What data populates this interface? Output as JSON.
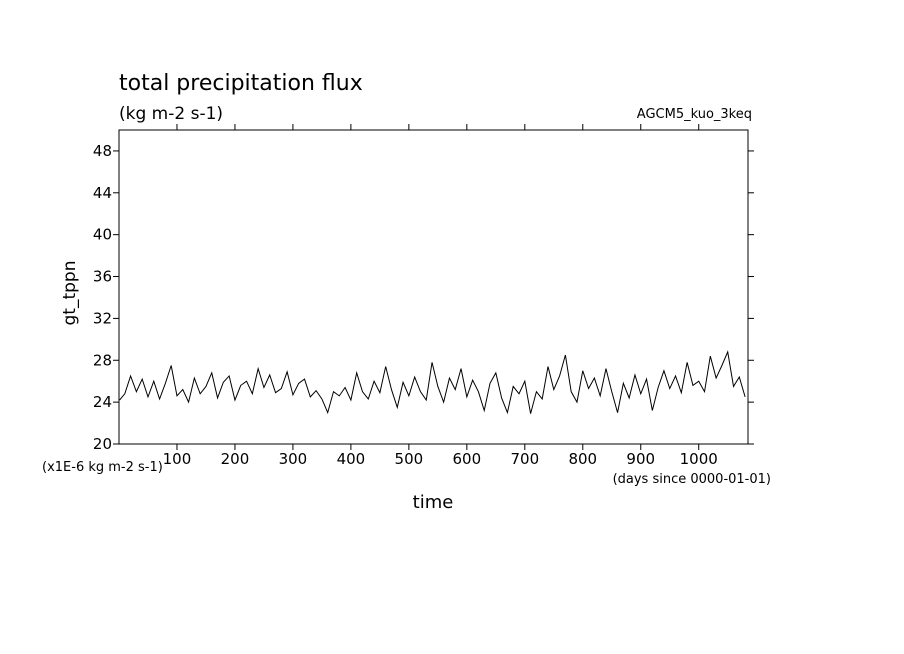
{
  "chart_data": {
    "type": "line",
    "title": "total precipitation flux",
    "subtitle": "(kg m-2 s-1)",
    "annotation": "AGCM5_kuo_3keq",
    "y_label": "gt_tppn",
    "x_label": "time",
    "y_units": "(x1E-6 kg m-2 s-1)",
    "x_units": "(days since 0000-01-01)",
    "x": [
      1,
      10,
      20,
      30,
      40,
      50,
      60,
      70,
      80,
      90,
      100,
      110,
      120,
      130,
      140,
      150,
      160,
      170,
      180,
      190,
      200,
      210,
      220,
      230,
      240,
      250,
      260,
      270,
      280,
      290,
      300,
      310,
      320,
      330,
      340,
      350,
      360,
      370,
      380,
      390,
      400,
      410,
      420,
      430,
      440,
      450,
      460,
      470,
      480,
      490,
      500,
      510,
      520,
      530,
      540,
      550,
      560,
      570,
      580,
      590,
      600,
      610,
      620,
      630,
      640,
      650,
      660,
      670,
      680,
      690,
      700,
      710,
      720,
      730,
      740,
      750,
      760,
      770,
      780,
      790,
      800,
      810,
      820,
      830,
      840,
      850,
      860,
      870,
      880,
      890,
      900,
      910,
      920,
      930,
      940,
      950,
      960,
      970,
      980,
      990,
      1000,
      1010,
      1020,
      1030,
      1040,
      1050,
      1060,
      1070,
      1080
    ],
    "series": [
      {
        "name": "gt_tppn",
        "color": "#000000",
        "values": [
          24.2,
          24.8,
          26.5,
          25.0,
          26.2,
          24.5,
          26.0,
          24.3,
          25.8,
          27.5,
          24.6,
          25.2,
          24.0,
          26.3,
          24.8,
          25.5,
          26.8,
          24.4,
          25.9,
          26.5,
          24.2,
          25.6,
          26.0,
          24.8,
          27.2,
          25.4,
          26.6,
          24.9,
          25.3,
          26.9,
          24.7,
          25.8,
          26.2,
          24.5,
          25.1,
          24.3,
          23.0,
          25.0,
          24.6,
          25.4,
          24.2,
          26.8,
          25.0,
          24.3,
          26.0,
          24.9,
          27.4,
          25.2,
          23.5,
          25.9,
          24.6,
          26.4,
          25.0,
          24.2,
          27.8,
          25.5,
          24.0,
          26.3,
          25.2,
          27.2,
          24.5,
          26.1,
          25.0,
          23.2,
          25.8,
          26.8,
          24.4,
          23.0,
          25.5,
          24.8,
          26.0,
          22.9,
          25.0,
          24.3,
          27.4,
          25.2,
          26.5,
          28.5,
          25.0,
          24.0,
          27.0,
          25.3,
          26.3,
          24.6,
          27.2,
          25.0,
          23.0,
          25.8,
          24.4,
          26.6,
          24.8,
          26.2,
          23.2,
          25.4,
          27.0,
          25.3,
          26.5,
          24.9,
          27.8,
          25.6,
          26.0,
          25.0,
          28.4,
          26.3,
          27.5,
          28.8,
          25.5,
          26.4,
          24.5
        ]
      }
    ],
    "xlim": [
      0,
      1085
    ],
    "ylim": [
      20,
      50
    ],
    "xticks": [
      100,
      200,
      300,
      400,
      500,
      600,
      700,
      800,
      900,
      1000
    ],
    "yticks": [
      20,
      24,
      28,
      32,
      36,
      40,
      44,
      48
    ]
  }
}
